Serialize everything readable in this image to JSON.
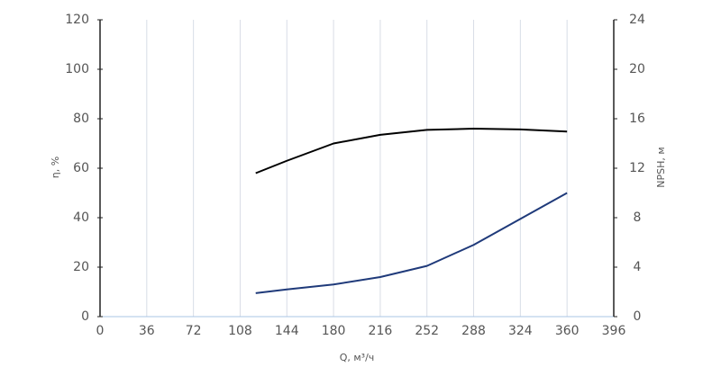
{
  "chart_data": {
    "type": "line",
    "ylabel": "η, %",
    "y2label": "NPSH, м",
    "xlabel": "Q, м³/ч",
    "x": [
      120,
      144,
      180,
      216,
      252,
      288,
      324,
      360
    ],
    "series": [
      {
        "color": "#000000",
        "values": [
          58,
          63,
          70,
          73.5,
          75.5,
          76,
          75.7,
          74.8
        ]
      },
      {
        "color": "#1f3a7a",
        "axis": "y2",
        "values": [
          1.9,
          2.2,
          2.6,
          3.2,
          4.1,
          5.8,
          7.9,
          10.0
        ]
      }
    ],
    "xlim": [
      0,
      396
    ],
    "xticks": [
      0,
      36,
      72,
      108,
      144,
      180,
      216,
      252,
      288,
      324,
      360,
      396
    ],
    "ylim": [
      0,
      120
    ],
    "yticks": [
      0,
      20,
      40,
      60,
      80,
      100,
      120
    ],
    "y2lim": [
      0,
      24
    ],
    "y2ticks": [
      0,
      4,
      8,
      12,
      16,
      20,
      24
    ],
    "grid": "x"
  }
}
